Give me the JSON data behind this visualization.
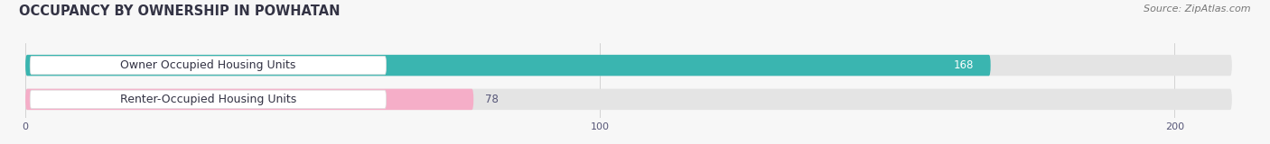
{
  "title": "OCCUPANCY BY OWNERSHIP IN POWHATAN",
  "source": "Source: ZipAtlas.com",
  "categories": [
    "Owner Occupied Housing Units",
    "Renter-Occupied Housing Units"
  ],
  "values": [
    168,
    78
  ],
  "bar_colors": [
    "#3ab5b0",
    "#f5aec8"
  ],
  "value_text_colors": [
    "#ffffff",
    "#555577"
  ],
  "xlim": [
    0,
    210
  ],
  "xticks": [
    0,
    100,
    200
  ],
  "title_fontsize": 10.5,
  "source_fontsize": 8,
  "label_fontsize": 9,
  "value_fontsize": 8.5,
  "background_color": "#f7f7f7",
  "bar_bg_color": "#e4e4e4",
  "label_box_color": "#ffffff",
  "label_text_color": "#333344"
}
